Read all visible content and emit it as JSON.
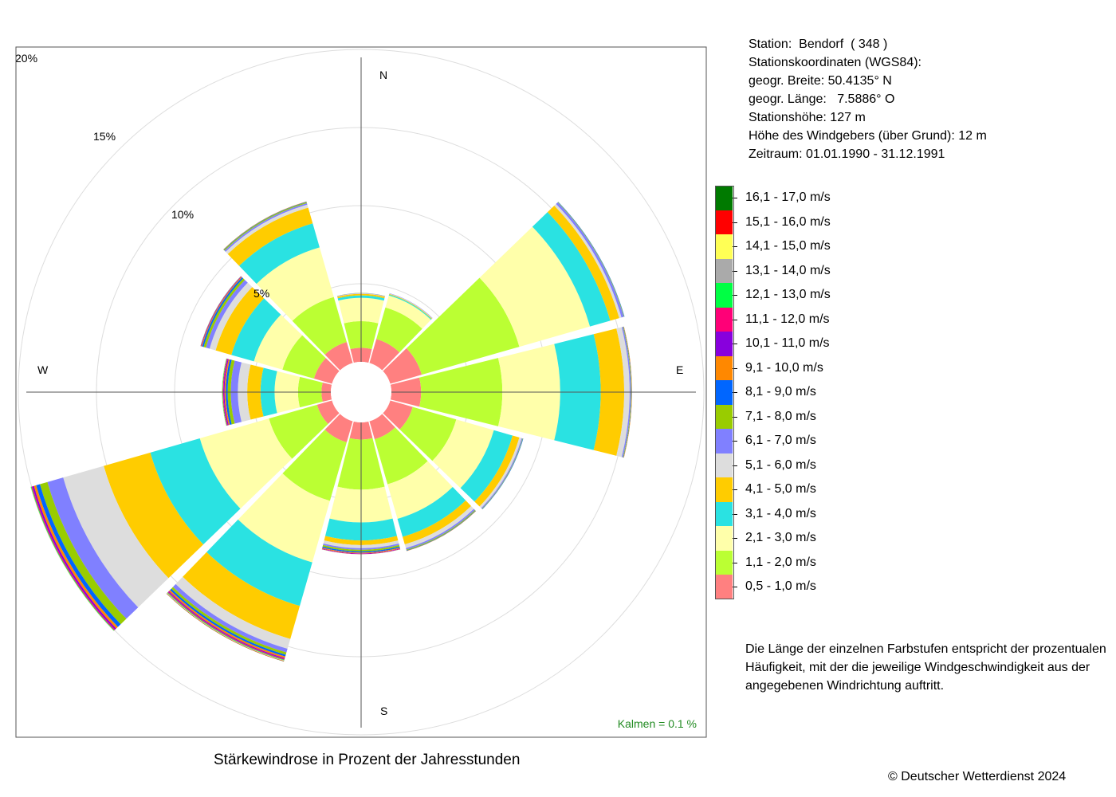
{
  "station": {
    "line1": "Station:  Bendorf  ( 348 )",
    "line2": "Stationskoordinaten (WGS84):",
    "line3": "geogr. Breite: 50.4135° N",
    "line4": "geogr. Länge:   7.5886° O",
    "line5": "Stationshöhe: 127 m",
    "line6": "Höhe des Windgebers (über Grund): 12 m",
    "line7": "Zeitraum: 01.01.1990 - 31.12.1991"
  },
  "legend": [
    {
      "label": "16,1 - 17,0 m/s",
      "color": "#007a00"
    },
    {
      "label": "15,1 - 16,0 m/s",
      "color": "#ff0000"
    },
    {
      "label": "14,1 - 15,0 m/s",
      "color": "#ffff55"
    },
    {
      "label": "13,1 - 14,0 m/s",
      "color": "#aaaaaa"
    },
    {
      "label": "12,1 - 13,0 m/s",
      "color": "#00ff44"
    },
    {
      "label": "11,1 - 12,0 m/s",
      "color": "#ff0077"
    },
    {
      "label": "10,1 - 11,0 m/s",
      "color": "#8800dd"
    },
    {
      "label": "9,1 - 10,0 m/s",
      "color": "#ff8800"
    },
    {
      "label": "8,1 - 9,0 m/s",
      "color": "#0066ff"
    },
    {
      "label": "7,1 - 8,0 m/s",
      "color": "#99cc00"
    },
    {
      "label": "6,1 - 7,0 m/s",
      "color": "#8080ff"
    },
    {
      "label": "5,1 - 6,0 m/s",
      "color": "#dddddd"
    },
    {
      "label": "4,1 - 5,0 m/s",
      "color": "#ffcc00"
    },
    {
      "label": "3,1 - 4,0 m/s",
      "color": "#2ae2e2"
    },
    {
      "label": "2,1 - 3,0 m/s",
      "color": "#ffffaa"
    },
    {
      "label": "1,1 - 2,0 m/s",
      "color": "#bbff33"
    },
    {
      "label": "0,5 - 1,0 m/s",
      "color": "#ff8080"
    }
  ],
  "note": "Die Länge der einzelnen Farbstufen entspricht der prozentualen Häufigkeit, mit der die jeweilige Windgeschwindigkeit aus der angegebenen Windrichtung auftritt.",
  "caption": "Stärkewindrose in Prozent der Jahresstunden",
  "copyright": "© Deutscher Wetterdienst  2024",
  "calm": "Kalmen  =  0.1 %",
  "calm_color": "#228b22",
  "chart_data": {
    "type": "wind-rose",
    "unit": "%",
    "directions_deg": [
      0,
      30,
      60,
      90,
      120,
      150,
      180,
      210,
      240,
      270,
      300,
      330
    ],
    "compass_labels": {
      "N": "N",
      "E": "E",
      "S": "S",
      "W": "W"
    },
    "ring_labels": [
      "5%",
      "10%",
      "15%",
      "20%"
    ],
    "ring_values": [
      5,
      10,
      15,
      20
    ],
    "bins": [
      "0,5 - 1,0 m/s",
      "1,1 - 2,0 m/s",
      "2,1 - 3,0 m/s",
      "3,1 - 4,0 m/s",
      "4,1 - 5,0 m/s",
      "5,1 - 6,0 m/s",
      "6,1 - 7,0 m/s",
      "7,1 - 8,0 m/s",
      "8,1 - 9,0 m/s",
      "9,1 - 10,0 m/s",
      "10,1 - 11,0 m/s",
      "11,1 - 12,0 m/s",
      "12,1 - 13,0 m/s",
      "13,1 - 14,0 m/s",
      "14,1 - 15,0 m/s",
      "15,1 - 16,0 m/s",
      "16,1 - 17,0 m/s"
    ],
    "series": [
      {
        "direction": 0,
        "values": [
          0.9,
          1.7,
          1.5,
          0.15,
          0.1,
          0.03,
          0.02,
          0.01,
          0,
          0,
          0,
          0,
          0,
          0,
          0,
          0,
          0
        ]
      },
      {
        "direction": 30,
        "values": [
          1.6,
          2.1,
          0.8,
          0.06,
          0.04,
          0.03,
          0.02,
          0,
          0,
          0,
          0,
          0,
          0,
          0,
          0,
          0,
          0
        ]
      },
      {
        "direction": 60,
        "values": [
          2.1,
          6.5,
          4.7,
          1.35,
          0.6,
          0.15,
          0.15,
          0.03,
          0.02,
          0,
          0,
          0,
          0,
          0,
          0,
          0,
          0
        ]
      },
      {
        "direction": 90,
        "values": [
          1.9,
          5.2,
          3.7,
          2.6,
          1.5,
          0.35,
          0.08,
          0.03,
          0.02,
          0.02,
          0,
          0,
          0,
          0,
          0,
          0,
          0
        ]
      },
      {
        "direction": 120,
        "values": [
          1.5,
          2.9,
          2.5,
          1.25,
          0.45,
          0.15,
          0.06,
          0.03,
          0.02,
          0,
          0,
          0,
          0,
          0,
          0,
          0,
          0
        ]
      },
      {
        "direction": 150,
        "values": [
          1.2,
          3.0,
          2.3,
          1.2,
          0.5,
          0.25,
          0.1,
          0.05,
          0.03,
          0.02,
          0,
          0,
          0,
          0,
          0,
          0,
          0
        ]
      },
      {
        "direction": 180,
        "values": [
          1.1,
          3.2,
          2.1,
          1.15,
          0.3,
          0.2,
          0.1,
          0.1,
          0.08,
          0.05,
          0.03,
          0.02,
          0.01,
          0,
          0,
          0,
          0
        ]
      },
      {
        "direction": 210,
        "values": [
          1.4,
          3.9,
          4.1,
          2.9,
          2.2,
          0.65,
          0.25,
          0.15,
          0.12,
          0.1,
          0.06,
          0.05,
          0.04,
          0.03,
          0.02,
          0.02,
          0.01
        ]
      },
      {
        "direction": 240,
        "values": [
          1.0,
          3.2,
          4.6,
          3.3,
          3.1,
          2.7,
          1.05,
          0.5,
          0.25,
          0.15,
          0.1,
          0.06,
          0.04,
          0.02,
          0.01,
          0,
          0
        ]
      },
      {
        "direction": 270,
        "values": [
          0.6,
          1.5,
          1.5,
          0.9,
          0.85,
          0.6,
          0.45,
          0.2,
          0.12,
          0.08,
          0.06,
          0.05,
          0.03,
          0.02,
          0.01,
          0,
          0
        ]
      },
      {
        "direction": 300,
        "values": [
          1.2,
          2.1,
          1.9,
          1.5,
          1.05,
          0.4,
          0.25,
          0.15,
          0.1,
          0.05,
          0.03,
          0.02,
          0.01,
          0,
          0,
          0,
          0
        ]
      },
      {
        "direction": 330,
        "values": [
          1.4,
          3.0,
          3.3,
          1.6,
          1.05,
          0.2,
          0.1,
          0.06,
          0.03,
          0.02,
          0,
          0,
          0,
          0,
          0,
          0,
          0
        ]
      }
    ]
  }
}
